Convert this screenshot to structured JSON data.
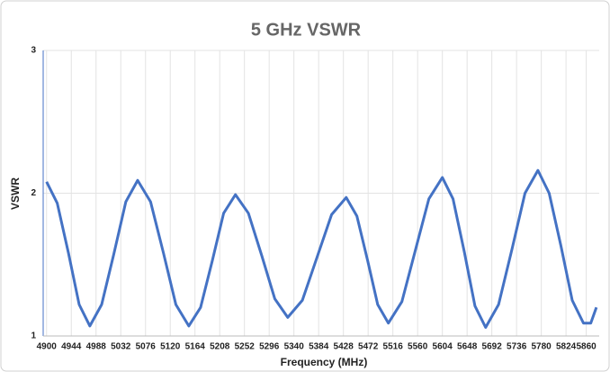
{
  "chart_data": {
    "type": "line",
    "title": "5 GHz VSWR",
    "x_label": "Frequency (MHz)",
    "y_label": "VSWR",
    "series": [
      {
        "name": "VSWR",
        "color": "#4472c4",
        "x": [
          4900,
          4919,
          4939,
          4958,
          4977,
          4998,
          5020,
          5041,
          5062,
          5085,
          5108,
          5130,
          5153,
          5174,
          5195,
          5215,
          5236,
          5259,
          5283,
          5306,
          5329,
          5355,
          5381,
          5407,
          5433,
          5452,
          5471,
          5489,
          5508,
          5532,
          5556,
          5580,
          5604,
          5623,
          5643,
          5662,
          5681,
          5704,
          5728,
          5751,
          5774,
          5794,
          5815,
          5835,
          5855,
          5868,
          5878
        ],
        "values": [
          2.08,
          1.93,
          1.58,
          1.22,
          1.07,
          1.22,
          1.58,
          1.94,
          2.09,
          1.94,
          1.58,
          1.22,
          1.07,
          1.2,
          1.53,
          1.86,
          1.99,
          1.86,
          1.56,
          1.26,
          1.13,
          1.25,
          1.55,
          1.85,
          1.97,
          1.84,
          1.53,
          1.22,
          1.09,
          1.24,
          1.6,
          1.96,
          2.11,
          1.96,
          1.59,
          1.21,
          1.06,
          1.22,
          1.61,
          2.0,
          2.16,
          2.0,
          1.63,
          1.25,
          1.09,
          1.09,
          1.2
        ]
      }
    ],
    "xlim": [
      4894,
      5883
    ],
    "xticks": [
      4900,
      4944,
      4988,
      5032,
      5076,
      5120,
      5164,
      5208,
      5252,
      5296,
      5340,
      5384,
      5428,
      5472,
      5516,
      5560,
      5604,
      5648,
      5692,
      5736,
      5780,
      5824,
      5860
    ],
    "ylim": [
      1,
      3
    ],
    "yticks": [
      1,
      2,
      3
    ],
    "grid": true
  }
}
